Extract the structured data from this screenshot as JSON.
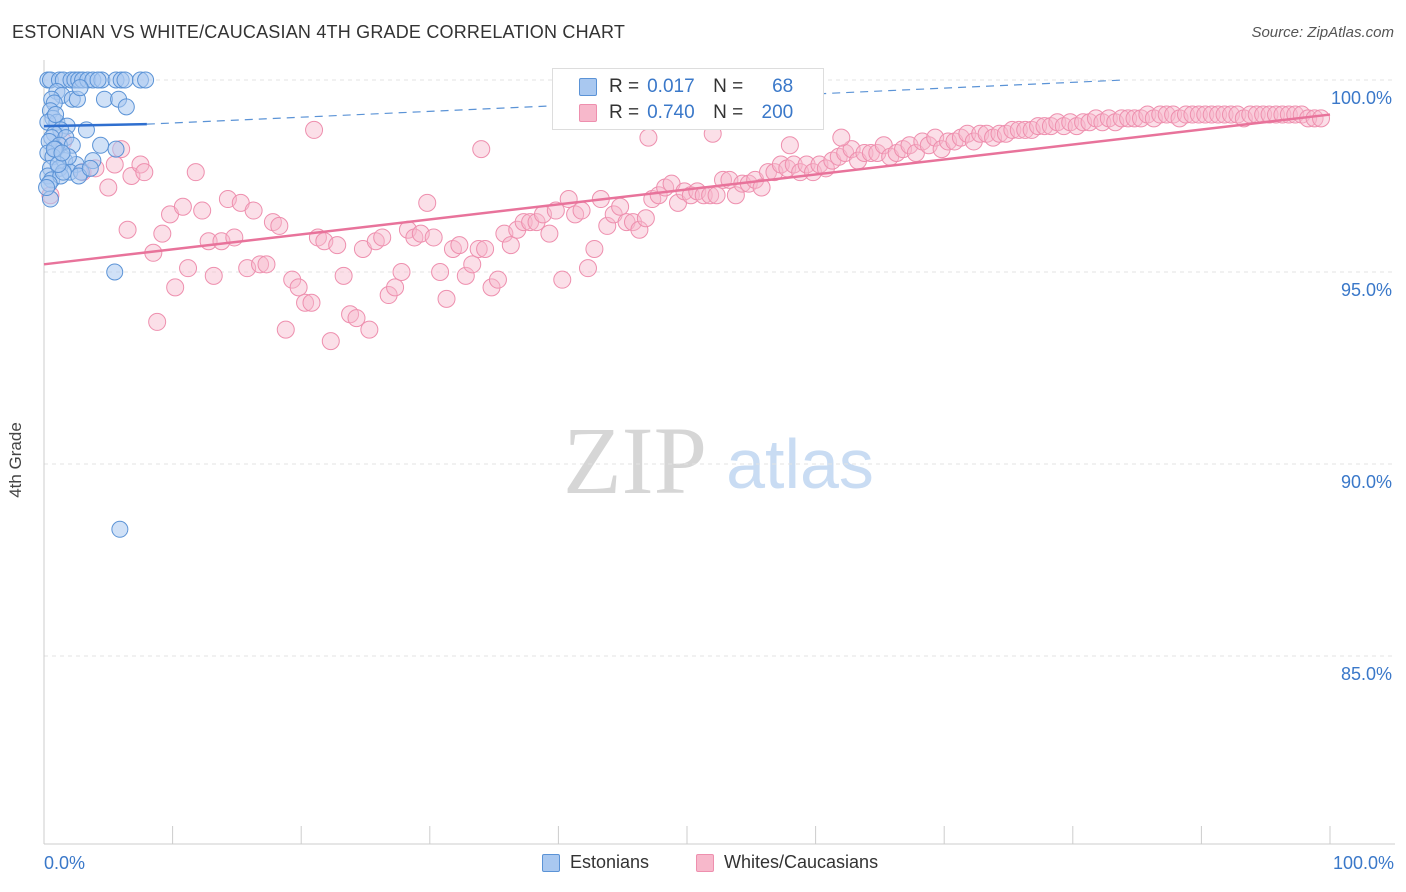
{
  "title": "ESTONIAN VS WHITE/CAUCASIAN 4TH GRADE CORRELATION CHART",
  "source": "Source: ZipAtlas.com",
  "watermark": {
    "zip": "ZIP",
    "atlas": "atlas"
  },
  "colors": {
    "blue_fill": "#a9c8f0",
    "blue_stroke": "#5b93d6",
    "blue_line": "#2f6fcf",
    "pink_fill": "#f7b8cb",
    "pink_stroke": "#ee8fae",
    "pink_line": "#e8739b",
    "tick_label": "#3a78c9",
    "grid": "#e3e3e3"
  },
  "legend": {
    "series": [
      {
        "name": "Estonians",
        "r_label": "R =",
        "r_value": "0.017",
        "n_label": "N =",
        "n_value": "68"
      },
      {
        "name": "Whites/Caucasians",
        "r_label": "R =",
        "r_value": "0.740",
        "n_label": "N =",
        "n_value": "200"
      }
    ]
  },
  "chart_data": {
    "type": "scatter",
    "title": "ESTONIAN VS WHITE/CAUCASIAN 4TH GRADE CORRELATION CHART",
    "xlabel": "",
    "ylabel": "4th Grade",
    "xlim": [
      0,
      100
    ],
    "ylim": [
      80.5,
      100.7
    ],
    "x_tick_labels": [
      "0.0%",
      "100.0%"
    ],
    "y_ticks": [
      100,
      95,
      90,
      85
    ],
    "y_tick_labels": [
      "100.0%",
      "95.0%",
      "90.0%",
      "85.0%"
    ],
    "grid": true,
    "series": [
      {
        "name": "Estonians",
        "r": 0.017,
        "n": 68,
        "trend": {
          "x": [
            0,
            8
          ],
          "y": [
            98.8,
            98.85
          ]
        },
        "trend_dashed": {
          "x": [
            8,
            84
          ],
          "y": [
            98.85,
            100.0
          ]
        },
        "points": [
          [
            0.3,
            100
          ],
          [
            0.5,
            100
          ],
          [
            1.2,
            100
          ],
          [
            1.5,
            100
          ],
          [
            2.1,
            100
          ],
          [
            2.4,
            100
          ],
          [
            2.7,
            100
          ],
          [
            3.0,
            100
          ],
          [
            3.4,
            100
          ],
          [
            3.8,
            100
          ],
          [
            4.5,
            100
          ],
          [
            5.6,
            100
          ],
          [
            6.0,
            100
          ],
          [
            6.3,
            100
          ],
          [
            7.5,
            100
          ],
          [
            7.9,
            100
          ],
          [
            1.0,
            99.7
          ],
          [
            1.4,
            99.6
          ],
          [
            0.6,
            99.5
          ],
          [
            0.8,
            99.4
          ],
          [
            2.2,
            99.5
          ],
          [
            2.6,
            99.5
          ],
          [
            4.7,
            99.5
          ],
          [
            5.8,
            99.5
          ],
          [
            6.4,
            99.3
          ],
          [
            0.5,
            99.2
          ],
          [
            0.7,
            99.0
          ],
          [
            1.0,
            98.9
          ],
          [
            0.3,
            98.9
          ],
          [
            1.8,
            98.8
          ],
          [
            1.3,
            98.7
          ],
          [
            0.8,
            98.6
          ],
          [
            0.6,
            98.5
          ],
          [
            1.7,
            98.5
          ],
          [
            0.4,
            98.4
          ],
          [
            1.2,
            98.3
          ],
          [
            0.9,
            98.2
          ],
          [
            2.2,
            98.3
          ],
          [
            4.4,
            98.3
          ],
          [
            5.6,
            98.2
          ],
          [
            0.3,
            98.1
          ],
          [
            0.7,
            98.0
          ],
          [
            1.6,
            97.9
          ],
          [
            2.5,
            97.8
          ],
          [
            0.5,
            97.7
          ],
          [
            1.2,
            97.7
          ],
          [
            2.0,
            97.6
          ],
          [
            2.9,
            97.6
          ],
          [
            0.3,
            97.5
          ],
          [
            0.6,
            97.4
          ],
          [
            1.3,
            97.5
          ],
          [
            2.7,
            97.5
          ],
          [
            0.4,
            97.3
          ],
          [
            3.8,
            97.9
          ],
          [
            0.5,
            96.9
          ],
          [
            1.5,
            97.6
          ],
          [
            5.5,
            95.0
          ],
          [
            5.9,
            88.3
          ],
          [
            0.8,
            98.2
          ],
          [
            1.9,
            98.0
          ],
          [
            3.3,
            98.7
          ],
          [
            2.8,
            99.8
          ],
          [
            4.2,
            100
          ],
          [
            0.2,
            97.2
          ],
          [
            1.1,
            97.8
          ],
          [
            0.9,
            99.1
          ],
          [
            3.6,
            97.7
          ],
          [
            1.4,
            98.1
          ]
        ]
      },
      {
        "name": "Whites/Caucasians",
        "r": 0.74,
        "n": 200,
        "trend": {
          "x": [
            0,
            100
          ],
          "y": [
            95.2,
            99.1
          ]
        },
        "points": [
          [
            0.5,
            97.0
          ],
          [
            1.5,
            98.4
          ],
          [
            3.0,
            97.6
          ],
          [
            4.0,
            97.7
          ],
          [
            5.0,
            97.2
          ],
          [
            5.5,
            97.8
          ],
          [
            6.0,
            98.2
          ],
          [
            6.5,
            96.1
          ],
          [
            6.8,
            97.5
          ],
          [
            7.5,
            97.8
          ],
          [
            7.8,
            97.6
          ],
          [
            8.5,
            95.5
          ],
          [
            8.8,
            93.7
          ],
          [
            9.2,
            96.0
          ],
          [
            9.8,
            96.5
          ],
          [
            10.2,
            94.6
          ],
          [
            10.8,
            96.7
          ],
          [
            11.2,
            95.1
          ],
          [
            11.8,
            97.6
          ],
          [
            12.3,
            96.6
          ],
          [
            12.8,
            95.8
          ],
          [
            13.2,
            94.9
          ],
          [
            13.8,
            95.8
          ],
          [
            14.3,
            96.9
          ],
          [
            14.8,
            95.9
          ],
          [
            15.3,
            96.8
          ],
          [
            15.8,
            95.1
          ],
          [
            16.3,
            96.6
          ],
          [
            16.8,
            95.2
          ],
          [
            17.3,
            95.2
          ],
          [
            17.8,
            96.3
          ],
          [
            18.3,
            96.2
          ],
          [
            18.8,
            93.5
          ],
          [
            19.3,
            94.8
          ],
          [
            19.8,
            94.6
          ],
          [
            20.3,
            94.2
          ],
          [
            20.8,
            94.2
          ],
          [
            21.3,
            95.9
          ],
          [
            21.8,
            95.8
          ],
          [
            22.3,
            93.2
          ],
          [
            22.8,
            95.7
          ],
          [
            23.3,
            94.9
          ],
          [
            23.8,
            93.9
          ],
          [
            24.3,
            93.8
          ],
          [
            24.8,
            95.6
          ],
          [
            25.3,
            93.5
          ],
          [
            25.8,
            95.8
          ],
          [
            26.3,
            95.9
          ],
          [
            26.8,
            94.4
          ],
          [
            27.3,
            94.6
          ],
          [
            27.8,
            95.0
          ],
          [
            28.3,
            96.1
          ],
          [
            28.8,
            95.9
          ],
          [
            29.3,
            96.0
          ],
          [
            29.8,
            96.8
          ],
          [
            30.3,
            95.9
          ],
          [
            30.8,
            95.0
          ],
          [
            31.3,
            94.3
          ],
          [
            31.8,
            95.6
          ],
          [
            32.3,
            95.7
          ],
          [
            32.8,
            94.9
          ],
          [
            33.3,
            95.2
          ],
          [
            33.8,
            95.6
          ],
          [
            34.3,
            95.6
          ],
          [
            34.8,
            94.6
          ],
          [
            35.3,
            94.8
          ],
          [
            35.8,
            96.0
          ],
          [
            36.3,
            95.7
          ],
          [
            36.8,
            96.1
          ],
          [
            37.3,
            96.3
          ],
          [
            37.8,
            96.3
          ],
          [
            38.3,
            96.3
          ],
          [
            38.8,
            96.5
          ],
          [
            39.3,
            96.0
          ],
          [
            39.8,
            96.6
          ],
          [
            40.3,
            94.8
          ],
          [
            40.8,
            96.9
          ],
          [
            41.3,
            96.5
          ],
          [
            41.8,
            96.6
          ],
          [
            42.3,
            95.1
          ],
          [
            42.8,
            95.6
          ],
          [
            43.3,
            96.9
          ],
          [
            43.8,
            96.2
          ],
          [
            44.3,
            96.5
          ],
          [
            44.8,
            96.7
          ],
          [
            45.3,
            96.3
          ],
          [
            45.8,
            96.3
          ],
          [
            46.3,
            96.1
          ],
          [
            46.8,
            96.4
          ],
          [
            47.3,
            96.9
          ],
          [
            47.8,
            97.0
          ],
          [
            48.3,
            97.2
          ],
          [
            48.8,
            97.3
          ],
          [
            49.3,
            96.8
          ],
          [
            49.8,
            97.1
          ],
          [
            50.3,
            97.0
          ],
          [
            50.8,
            97.1
          ],
          [
            51.3,
            97.0
          ],
          [
            51.8,
            97.0
          ],
          [
            52.3,
            97.0
          ],
          [
            52.8,
            97.4
          ],
          [
            53.3,
            97.4
          ],
          [
            53.8,
            97.0
          ],
          [
            54.3,
            97.3
          ],
          [
            54.8,
            97.3
          ],
          [
            55.3,
            97.4
          ],
          [
            55.8,
            97.2
          ],
          [
            56.3,
            97.6
          ],
          [
            56.8,
            97.6
          ],
          [
            57.3,
            97.8
          ],
          [
            57.8,
            97.7
          ],
          [
            58.3,
            97.8
          ],
          [
            58.8,
            97.6
          ],
          [
            59.3,
            97.8
          ],
          [
            59.8,
            97.6
          ],
          [
            60.3,
            97.8
          ],
          [
            60.8,
            97.7
          ],
          [
            61.3,
            97.9
          ],
          [
            61.8,
            98.0
          ],
          [
            62.3,
            98.1
          ],
          [
            62.8,
            98.2
          ],
          [
            63.3,
            97.9
          ],
          [
            63.8,
            98.1
          ],
          [
            64.3,
            98.1
          ],
          [
            64.8,
            98.1
          ],
          [
            65.3,
            98.3
          ],
          [
            65.8,
            98.0
          ],
          [
            66.3,
            98.1
          ],
          [
            66.8,
            98.2
          ],
          [
            67.3,
            98.3
          ],
          [
            67.8,
            98.1
          ],
          [
            68.3,
            98.4
          ],
          [
            68.8,
            98.3
          ],
          [
            69.3,
            98.5
          ],
          [
            69.8,
            98.2
          ],
          [
            70.3,
            98.4
          ],
          [
            70.8,
            98.4
          ],
          [
            71.3,
            98.5
          ],
          [
            71.8,
            98.6
          ],
          [
            72.3,
            98.4
          ],
          [
            72.8,
            98.6
          ],
          [
            73.3,
            98.6
          ],
          [
            73.8,
            98.5
          ],
          [
            74.3,
            98.6
          ],
          [
            74.8,
            98.6
          ],
          [
            75.3,
            98.7
          ],
          [
            75.8,
            98.7
          ],
          [
            76.3,
            98.7
          ],
          [
            76.8,
            98.7
          ],
          [
            77.3,
            98.8
          ],
          [
            77.8,
            98.8
          ],
          [
            78.3,
            98.8
          ],
          [
            78.8,
            98.9
          ],
          [
            79.3,
            98.8
          ],
          [
            79.8,
            98.9
          ],
          [
            80.3,
            98.8
          ],
          [
            80.8,
            98.9
          ],
          [
            81.3,
            98.9
          ],
          [
            81.8,
            99.0
          ],
          [
            82.3,
            98.9
          ],
          [
            82.8,
            99.0
          ],
          [
            83.3,
            98.9
          ],
          [
            83.8,
            99.0
          ],
          [
            84.3,
            99.0
          ],
          [
            84.8,
            99.0
          ],
          [
            85.3,
            99.0
          ],
          [
            85.8,
            99.1
          ],
          [
            86.3,
            99.0
          ],
          [
            86.8,
            99.1
          ],
          [
            87.3,
            99.1
          ],
          [
            87.8,
            99.1
          ],
          [
            88.3,
            99.0
          ],
          [
            88.8,
            99.1
          ],
          [
            89.3,
            99.1
          ],
          [
            89.8,
            99.1
          ],
          [
            90.3,
            99.1
          ],
          [
            90.8,
            99.1
          ],
          [
            91.3,
            99.1
          ],
          [
            91.8,
            99.1
          ],
          [
            92.3,
            99.1
          ],
          [
            92.8,
            99.1
          ],
          [
            93.3,
            99.0
          ],
          [
            93.8,
            99.1
          ],
          [
            94.3,
            99.1
          ],
          [
            94.8,
            99.1
          ],
          [
            95.3,
            99.1
          ],
          [
            95.8,
            99.1
          ],
          [
            96.3,
            99.1
          ],
          [
            96.8,
            99.1
          ],
          [
            97.3,
            99.1
          ],
          [
            97.8,
            99.1
          ],
          [
            98.3,
            99.0
          ],
          [
            98.8,
            99.0
          ],
          [
            99.3,
            99.0
          ],
          [
            21.0,
            98.7
          ],
          [
            34.0,
            98.2
          ],
          [
            47.0,
            98.5
          ],
          [
            52.0,
            98.6
          ],
          [
            58.0,
            98.3
          ],
          [
            62.0,
            98.5
          ]
        ]
      }
    ]
  }
}
